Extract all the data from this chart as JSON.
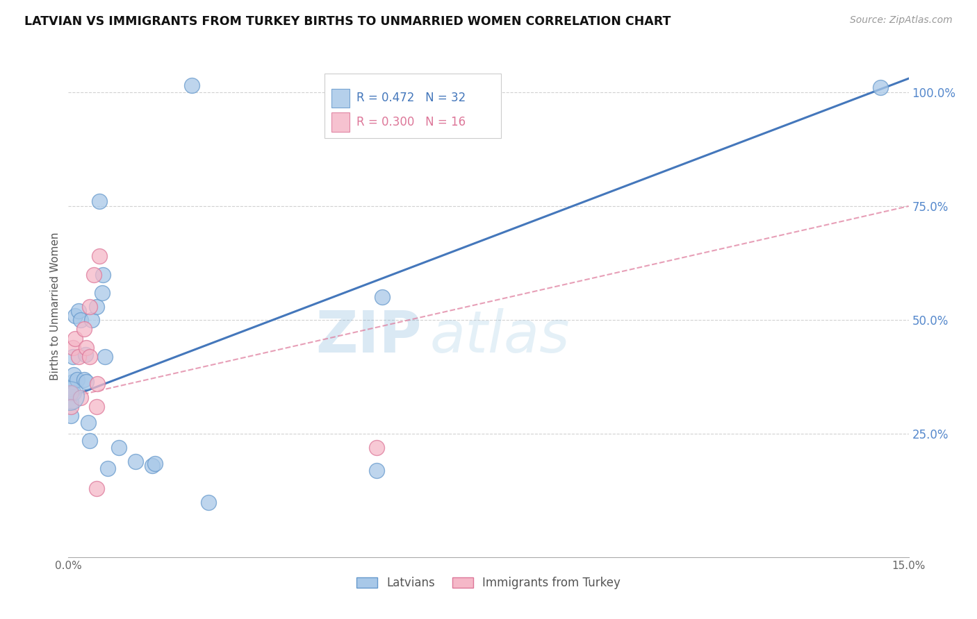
{
  "title": "LATVIAN VS IMMIGRANTS FROM TURKEY BIRTHS TO UNMARRIED WOMEN CORRELATION CHART",
  "source": "Source: ZipAtlas.com",
  "ylabel": "Births to Unmarried Women",
  "legend1_label": "Latvians",
  "legend2_label": "Immigrants from Turkey",
  "R1": 0.472,
  "N1": 32,
  "R2": 0.3,
  "N2": 16,
  "blue_scatter_color": "#a8c8e8",
  "pink_scatter_color": "#f5b8c8",
  "blue_edge_color": "#6699cc",
  "pink_edge_color": "#dd7799",
  "blue_line_color": "#4477bb",
  "pink_line_color": "#dd7799",
  "axis_label_color": "#5588cc",
  "x_min": 0.0,
  "x_max": 15.0,
  "y_min": -2.0,
  "y_max": 108.0,
  "latvian_x": [
    0.05,
    0.05,
    0.05,
    0.08,
    0.08,
    0.1,
    0.1,
    0.12,
    0.15,
    0.18,
    0.22,
    0.28,
    0.3,
    0.32,
    0.35,
    0.38,
    0.42,
    0.5,
    0.55,
    0.6,
    0.62,
    0.65,
    0.7,
    0.9,
    1.2,
    1.5,
    1.55,
    2.2,
    2.5,
    5.5,
    5.6,
    14.5
  ],
  "latvian_y": [
    32.0,
    29.0,
    35.0,
    36.5,
    42.0,
    34.0,
    38.0,
    51.0,
    37.0,
    52.0,
    50.0,
    37.0,
    42.5,
    36.5,
    27.5,
    23.5,
    50.0,
    53.0,
    76.0,
    56.0,
    60.0,
    42.0,
    17.5,
    22.0,
    19.0,
    18.0,
    18.5,
    101.5,
    10.0,
    17.0,
    55.0,
    101.0
  ],
  "turkey_x": [
    0.05,
    0.05,
    0.08,
    0.12,
    0.18,
    0.22,
    0.28,
    0.32,
    0.38,
    0.38,
    0.45,
    0.5,
    0.52,
    0.55,
    0.5,
    5.5
  ],
  "turkey_y": [
    34.0,
    31.0,
    44.0,
    46.0,
    42.0,
    33.0,
    48.0,
    44.0,
    42.0,
    53.0,
    60.0,
    31.0,
    36.0,
    64.0,
    13.0,
    22.0
  ],
  "blue_line_x0": 0.0,
  "blue_line_y0": 33.0,
  "blue_line_x1": 15.0,
  "blue_line_y1": 103.0,
  "pink_line_x0": 0.0,
  "pink_line_y0": 33.0,
  "pink_line_x1": 15.0,
  "pink_line_y1": 75.0,
  "watermark_zip": "ZIP",
  "watermark_atlas": "atlas",
  "grid_color": "#cccccc",
  "yticks": [
    25,
    50,
    75,
    100
  ],
  "ytick_labels": [
    "25.0%",
    "50.0%",
    "75.0%",
    "100.0%"
  ]
}
